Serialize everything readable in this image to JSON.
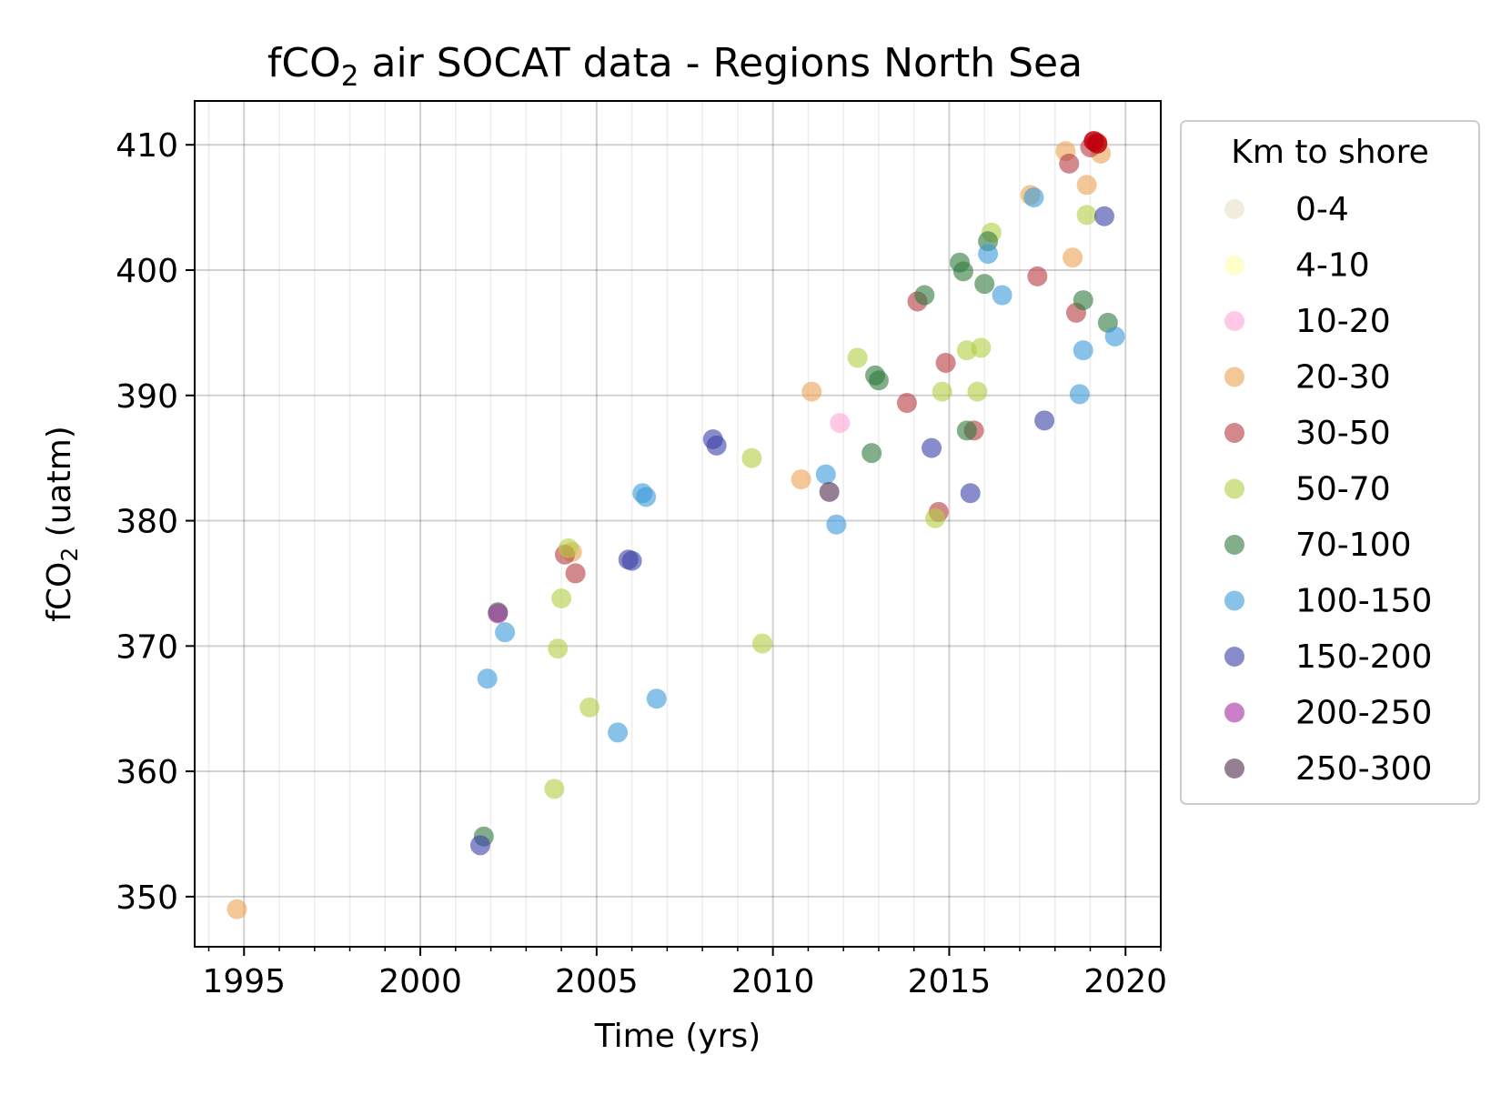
{
  "chart_data": {
    "type": "scatter",
    "title": {
      "prefix": "fCO",
      "subscript": "2",
      "suffix": " air SOCAT data - Regions North Sea"
    },
    "xlabel": "Time (yrs)",
    "ylabel": {
      "prefix": "fCO",
      "subscript": "2",
      "suffix": " (uatm)"
    },
    "xlim": [
      1993.6,
      2021.0
    ],
    "ylim": [
      346.0,
      413.5
    ],
    "xticks": [
      1995,
      2000,
      2005,
      2010,
      2015,
      2020
    ],
    "xtick_labels": [
      "1995",
      "2000",
      "2005",
      "2010",
      "2015",
      "2020"
    ],
    "yticks": [
      350,
      360,
      370,
      380,
      390,
      400,
      410
    ],
    "ytick_labels": [
      "350",
      "360",
      "370",
      "380",
      "390",
      "400",
      "410"
    ],
    "minor_x_step": 1,
    "grid": true,
    "legend": {
      "title": "Km to shore",
      "placement": "outside-right"
    },
    "series": [
      {
        "name": "0-4",
        "color": "#e8dfc5",
        "points": []
      },
      {
        "name": "4-10",
        "color": "#ffffaa",
        "points": []
      },
      {
        "name": "10-20",
        "color": "#ffa3d6",
        "points": [
          [
            2011.9,
            387.8
          ]
        ]
      },
      {
        "name": "20-30",
        "color": "#eba153",
        "points": [
          [
            1994.8,
            349.0
          ],
          [
            2004.3,
            377.5
          ],
          [
            2010.8,
            383.3
          ],
          [
            2011.1,
            390.3
          ],
          [
            2017.3,
            406.0
          ],
          [
            2018.3,
            409.5
          ],
          [
            2018.5,
            401.0
          ],
          [
            2018.9,
            406.8
          ],
          [
            2019.3,
            409.3
          ],
          [
            2019.2,
            410.2
          ]
        ]
      },
      {
        "name": "30-50",
        "color": "#b6393d",
        "points": [
          [
            2004.1,
            377.3
          ],
          [
            2004.4,
            375.8
          ],
          [
            2013.8,
            389.4
          ],
          [
            2014.1,
            397.5
          ],
          [
            2014.7,
            380.7
          ],
          [
            2014.9,
            392.6
          ],
          [
            2015.7,
            387.2
          ],
          [
            2017.5,
            399.5
          ],
          [
            2018.4,
            408.5
          ],
          [
            2018.6,
            396.6
          ],
          [
            2019.0,
            409.8
          ]
        ]
      },
      {
        "name": "50-70",
        "color": "#b2cf45",
        "points": [
          [
            2003.8,
            358.6
          ],
          [
            2003.9,
            369.8
          ],
          [
            2004.0,
            373.8
          ],
          [
            2004.2,
            377.8
          ],
          [
            2004.8,
            365.1
          ],
          [
            2009.4,
            385.0
          ],
          [
            2009.7,
            370.2
          ],
          [
            2012.4,
            393.0
          ],
          [
            2014.6,
            380.2
          ],
          [
            2014.8,
            390.3
          ],
          [
            2015.5,
            393.6
          ],
          [
            2015.8,
            390.3
          ],
          [
            2015.9,
            393.8
          ],
          [
            2016.2,
            403.0
          ],
          [
            2018.9,
            404.4
          ]
        ]
      },
      {
        "name": "70-100",
        "color": "#2e7a3c",
        "points": [
          [
            2001.8,
            354.8
          ],
          [
            2002.2,
            372.7
          ],
          [
            2012.8,
            385.4
          ],
          [
            2012.9,
            391.6
          ],
          [
            2013.0,
            391.2
          ],
          [
            2014.3,
            398.0
          ],
          [
            2015.3,
            400.6
          ],
          [
            2015.4,
            399.9
          ],
          [
            2015.5,
            387.2
          ],
          [
            2016.0,
            398.9
          ],
          [
            2016.1,
            402.3
          ],
          [
            2018.8,
            397.6
          ],
          [
            2019.5,
            395.8
          ]
        ]
      },
      {
        "name": "100-150",
        "color": "#3b9ad8",
        "points": [
          [
            2001.9,
            367.4
          ],
          [
            2002.4,
            371.1
          ],
          [
            2005.6,
            363.1
          ],
          [
            2006.3,
            382.2
          ],
          [
            2006.4,
            381.9
          ],
          [
            2006.7,
            365.8
          ],
          [
            2011.5,
            383.7
          ],
          [
            2011.8,
            379.7
          ],
          [
            2016.1,
            401.3
          ],
          [
            2016.5,
            398.0
          ],
          [
            2017.4,
            405.8
          ],
          [
            2018.7,
            390.1
          ],
          [
            2018.8,
            393.6
          ],
          [
            2019.7,
            394.7
          ]
        ]
      },
      {
        "name": "150-200",
        "color": "#3a3fa6",
        "points": [
          [
            2001.7,
            354.1
          ],
          [
            2005.9,
            376.9
          ],
          [
            2006.0,
            376.8
          ],
          [
            2008.3,
            386.5
          ],
          [
            2008.4,
            386.0
          ],
          [
            2014.5,
            385.8
          ],
          [
            2015.6,
            382.2
          ],
          [
            2017.7,
            388.0
          ],
          [
            2019.4,
            404.3
          ]
        ]
      },
      {
        "name": "200-250",
        "color": "#a52ba5",
        "points": [
          [
            2002.2,
            372.6
          ]
        ]
      },
      {
        "name": "250-300",
        "color": "#52294b",
        "points": [
          [
            2011.6,
            382.3
          ]
        ]
      }
    ],
    "highlight_points": [
      {
        "color": "#c0000e",
        "points": [
          [
            2019.1,
            410.3
          ],
          [
            2019.2,
            410.1
          ]
        ]
      }
    ]
  }
}
